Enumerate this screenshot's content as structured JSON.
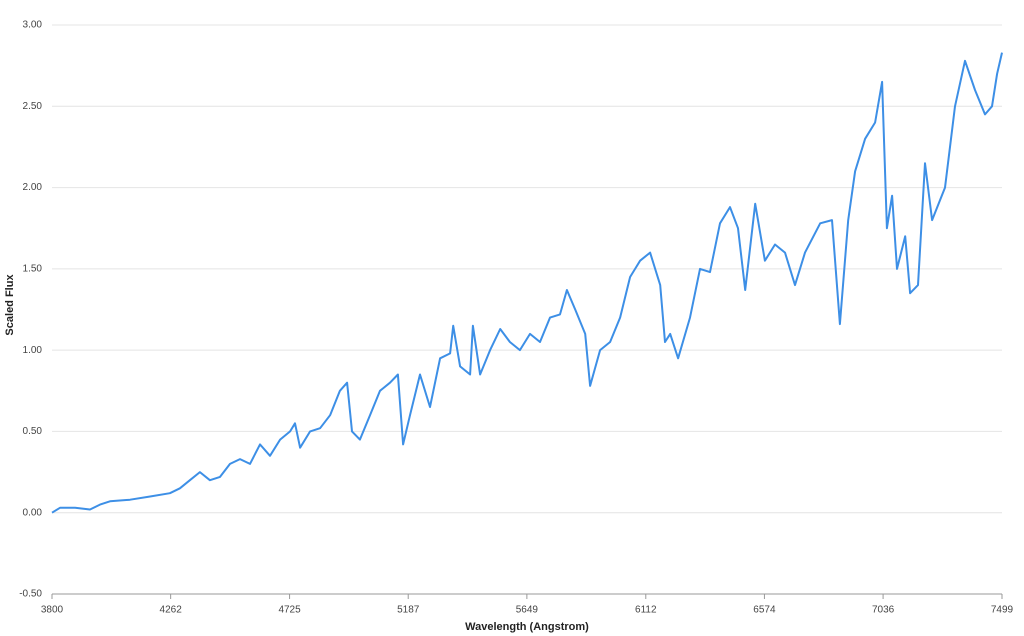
{
  "chart_data": {
    "type": "line",
    "x_label": "Wavelength (Angstrom)",
    "y_label": "Scaled Flux",
    "xlim": [
      3800,
      7499
    ],
    "xticks": [
      3800,
      4262,
      4725,
      5187,
      5649,
      6112,
      6574,
      7036,
      7499
    ],
    "ylim": [
      -0.5,
      3
    ],
    "yticks": [
      {
        "value": -0.5,
        "label": "-0.50"
      },
      {
        "value": 0,
        "label": "0.00"
      },
      {
        "value": 0.5,
        "label": "0.50"
      },
      {
        "value": 1,
        "label": "1.00"
      },
      {
        "value": 1.5,
        "label": "1.50"
      },
      {
        "value": 2,
        "label": "2.00"
      },
      {
        "value": 2.5,
        "label": "2.50"
      },
      {
        "value": 3,
        "label": "3.00"
      }
    ],
    "grid": true,
    "series": [
      {
        "color": "#3d8fe6",
        "x": [
          3800,
          3831,
          3890,
          3948,
          3987,
          4026,
          4104,
          4182,
          4259,
          4298,
          4337,
          4376,
          4415,
          4454,
          4493,
          4532,
          4571,
          4610,
          4649,
          4688,
          4727,
          4746,
          4766,
          4805,
          4844,
          4883,
          4921,
          4949,
          4968,
          4999,
          5038,
          5077,
          5116,
          5147,
          5167,
          5194,
          5233,
          5272,
          5311,
          5350,
          5362,
          5389,
          5428,
          5439,
          5467,
          5506,
          5545,
          5583,
          5622,
          5661,
          5700,
          5739,
          5778,
          5805,
          5837,
          5876,
          5895,
          5934,
          5973,
          6012,
          6051,
          6090,
          6129,
          6168,
          6187,
          6207,
          6238,
          6284,
          6323,
          6362,
          6401,
          6440,
          6471,
          6499,
          6538,
          6576,
          6615,
          6654,
          6693,
          6732,
          6791,
          6837,
          6868,
          6900,
          6927,
          6966,
          7005,
          7032,
          7051,
          7071,
          7090,
          7122,
          7141,
          7172,
          7199,
          7227,
          7277,
          7316,
          7355,
          7394,
          7433,
          7460,
          7480,
          7499
        ],
        "values": [
          0,
          0.03,
          0.03,
          0.02,
          0.05,
          0.07,
          0.08,
          0.1,
          0.12,
          0.15,
          0.2,
          0.25,
          0.2,
          0.22,
          0.3,
          0.33,
          0.3,
          0.42,
          0.35,
          0.45,
          0.5,
          0.55,
          0.4,
          0.5,
          0.52,
          0.6,
          0.75,
          0.8,
          0.5,
          0.45,
          0.6,
          0.75,
          0.8,
          0.85,
          0.42,
          0.6,
          0.85,
          0.65,
          0.95,
          0.98,
          1.15,
          0.9,
          0.85,
          1.15,
          0.85,
          1,
          1.13,
          1.05,
          1,
          1.1,
          1.05,
          1.2,
          1.22,
          1.37,
          1.25,
          1.1,
          0.78,
          1,
          1.05,
          1.2,
          1.45,
          1.55,
          1.6,
          1.4,
          1.05,
          1.1,
          0.95,
          1.2,
          1.5,
          1.48,
          1.78,
          1.88,
          1.75,
          1.37,
          1.9,
          1.55,
          1.65,
          1.6,
          1.4,
          1.6,
          1.78,
          1.8,
          1.16,
          1.8,
          2.1,
          2.3,
          2.4,
          2.65,
          1.75,
          1.95,
          1.5,
          1.7,
          1.35,
          1.4,
          2.15,
          1.8,
          2,
          2.5,
          2.78,
          2.6,
          2.45,
          2.5,
          2.7,
          2.83
        ]
      }
    ]
  }
}
